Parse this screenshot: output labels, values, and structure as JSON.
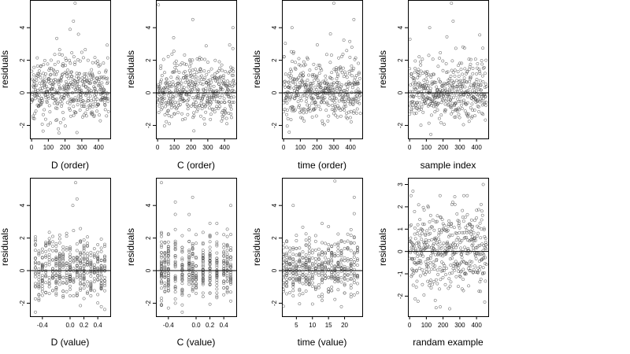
{
  "figure": {
    "panels": [
      {
        "xlabel": "D (order)",
        "ylabel": "residuals"
      },
      {
        "xlabel": "C (order)",
        "ylabel": "residuals"
      },
      {
        "xlabel": "time (order)",
        "ylabel": "residuals"
      },
      {
        "xlabel": "sample index",
        "ylabel": "residuals"
      },
      {
        "xlabel": "D (value)",
        "ylabel": "residuals"
      },
      {
        "xlabel": "C (value)",
        "ylabel": "residuals"
      },
      {
        "xlabel": "time (value)",
        "ylabel": "residuals"
      },
      {
        "xlabel": "randam example",
        "ylabel": "residuals"
      }
    ]
  },
  "style": {
    "point_color": "#555555",
    "axis_color": "#000000",
    "background": "#ffffff"
  },
  "chart_data": [
    {
      "type": "scatter",
      "xlabel": "D (order)",
      "ylabel": "residuals",
      "xlim": [
        -10,
        470
      ],
      "ylim": [
        -2.8,
        5.7
      ],
      "xticks": [
        0,
        100,
        200,
        300,
        400
      ],
      "yticks": [
        -2,
        0,
        2,
        4
      ],
      "hline": 0,
      "n_points": 450,
      "highlighted_points": [
        {
          "x": 260,
          "y": 5.5
        },
        {
          "x": 250,
          "y": 4.4
        },
        {
          "x": 280,
          "y": 3.6
        },
        {
          "x": 230,
          "y": 3.9
        }
      ]
    },
    {
      "type": "scatter",
      "xlabel": "C (order)",
      "ylabel": "residuals",
      "xlim": [
        -10,
        470
      ],
      "ylim": [
        -2.8,
        5.7
      ],
      "xticks": [
        0,
        100,
        200,
        300,
        400
      ],
      "yticks": [
        -2,
        0,
        2,
        4
      ],
      "hline": 0,
      "n_points": 450,
      "highlighted_points": [
        {
          "x": 5,
          "y": 5.4
        },
        {
          "x": 210,
          "y": 4.5
        },
        {
          "x": 450,
          "y": 4.0
        }
      ]
    },
    {
      "type": "scatter",
      "xlabel": "time (order)",
      "ylabel": "residuals",
      "xlim": [
        -10,
        470
      ],
      "ylim": [
        -2.8,
        5.7
      ],
      "xticks": [
        0,
        100,
        200,
        300,
        400
      ],
      "yticks": [
        -2,
        0,
        2,
        4
      ],
      "hline": 0,
      "n_points": 450,
      "highlighted_points": [
        {
          "x": 300,
          "y": 5.5
        },
        {
          "x": 50,
          "y": 4.0
        },
        {
          "x": 420,
          "y": 4.5
        }
      ]
    },
    {
      "type": "scatter",
      "xlabel": "sample index",
      "ylabel": "residuals",
      "xlim": [
        -10,
        470
      ],
      "ylim": [
        -2.8,
        5.7
      ],
      "xticks": [
        0,
        100,
        200,
        300,
        400
      ],
      "yticks": [
        -2,
        0,
        2,
        4
      ],
      "hline": 0,
      "n_points": 450,
      "highlighted_points": [
        {
          "x": 250,
          "y": 5.5
        },
        {
          "x": 260,
          "y": 4.4
        },
        {
          "x": 120,
          "y": 4.0
        }
      ]
    },
    {
      "type": "scatter",
      "xlabel": "D (value)",
      "ylabel": "residuals",
      "xlim": [
        -0.58,
        0.58
      ],
      "ylim": [
        -2.8,
        5.7
      ],
      "xticks": [
        -0.4,
        0.0,
        0.2,
        0.4
      ],
      "xticklabels": [
        "-0.4",
        "0.0",
        "0.2",
        "0.4"
      ],
      "yticks": [
        -2,
        0,
        2,
        4
      ],
      "hline": 0,
      "n_points": 450,
      "x_levels": [
        -0.5,
        -0.45,
        -0.4,
        -0.35,
        -0.3,
        -0.25,
        -0.2,
        -0.15,
        -0.1,
        -0.05,
        0.0,
        0.05,
        0.1,
        0.15,
        0.2,
        0.25,
        0.3,
        0.35,
        0.4,
        0.45,
        0.5
      ],
      "highlighted_points": [
        {
          "x": 0.08,
          "y": 5.4
        },
        {
          "x": 0.04,
          "y": 4.0
        },
        {
          "x": 0.1,
          "y": 4.4
        }
      ]
    },
    {
      "type": "scatter",
      "xlabel": "C (value)",
      "ylabel": "residuals",
      "xlim": [
        -0.58,
        0.58
      ],
      "ylim": [
        -2.8,
        5.7
      ],
      "xticks": [
        -0.4,
        0.0,
        0.2,
        0.4
      ],
      "xticklabels": [
        "-0.4",
        "0.0",
        "0.2",
        "0.4"
      ],
      "yticks": [
        -2,
        0,
        2,
        4
      ],
      "hline": 0,
      "n_points": 450,
      "x_levels": [
        -0.5,
        -0.45,
        -0.4,
        -0.3,
        -0.2,
        -0.1,
        -0.05,
        0.0,
        0.1,
        0.2,
        0.3,
        0.4,
        0.45,
        0.5
      ],
      "highlighted_points": [
        {
          "x": -0.5,
          "y": 5.4
        },
        {
          "x": -0.05,
          "y": 4.5
        },
        {
          "x": 0.5,
          "y": 4.0
        }
      ]
    },
    {
      "type": "scatter",
      "xlabel": "time (value)",
      "ylabel": "residuals",
      "xlim": [
        0.5,
        25.5
      ],
      "ylim": [
        -2.8,
        5.7
      ],
      "xticks": [
        5,
        10,
        15,
        20
      ],
      "yticks": [
        -2,
        0,
        2,
        4
      ],
      "hline": 0,
      "n_points": 450,
      "x_levels": [
        1,
        2,
        3,
        4,
        5,
        6,
        7,
        8,
        9,
        10,
        11,
        12,
        13,
        14,
        15,
        16,
        17,
        18,
        19,
        20,
        21,
        22,
        23,
        24
      ],
      "highlighted_points": [
        {
          "x": 17,
          "y": 5.5
        },
        {
          "x": 4,
          "y": 4.0
        },
        {
          "x": 23,
          "y": 4.5
        }
      ]
    },
    {
      "type": "scatter",
      "xlabel": "randam example",
      "ylabel": "residuals",
      "xlim": [
        -10,
        470
      ],
      "ylim": [
        -2.9,
        3.3
      ],
      "xticks": [
        0,
        100,
        200,
        300,
        400
      ],
      "yticks": [
        -2,
        -1,
        0,
        1,
        2,
        3
      ],
      "hline": 0,
      "n_points": 450,
      "highlighted_points": [
        {
          "x": 440,
          "y": 3.0
        },
        {
          "x": 20,
          "y": 2.7
        }
      ]
    }
  ]
}
